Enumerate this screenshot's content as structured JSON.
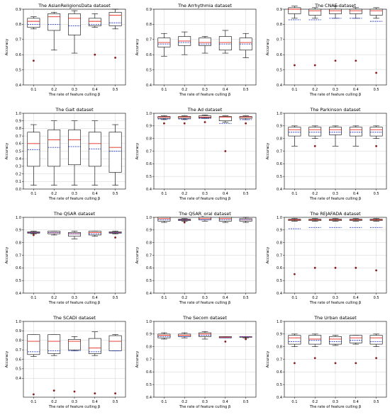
{
  "figure": {
    "layout": "4 rows x 3 columns of box plots"
  },
  "chart_data": [
    {
      "type": "box",
      "title": "The AsianReligionsData dataset",
      "xlabel": "The rate of feature culling β",
      "ylabel": "Accuracy",
      "categories": [
        "0.1",
        "0.2",
        "0.3",
        "0.4",
        "0.5"
      ],
      "ylim": [
        0.4,
        0.9
      ],
      "yticks": [
        "0.4",
        "0.5",
        "0.6",
        "0.7",
        "0.8",
        "0.9"
      ],
      "boxes": [
        {
          "whislo": 0.77,
          "q1": 0.78,
          "median": 0.82,
          "q3": 0.84,
          "whishi": 0.85,
          "mean": 0.8,
          "fliers": [
            0.56
          ]
        },
        {
          "whislo": 0.63,
          "q1": 0.76,
          "median": 0.85,
          "q3": 0.87,
          "whishi": 0.88,
          "mean": 0.8,
          "fliers": []
        },
        {
          "whislo": 0.61,
          "q1": 0.73,
          "median": 0.84,
          "q3": 0.87,
          "whishi": 0.89,
          "mean": 0.79,
          "fliers": []
        },
        {
          "whislo": 0.78,
          "q1": 0.79,
          "median": 0.82,
          "q3": 0.84,
          "whishi": 0.87,
          "mean": 0.8,
          "fliers": [
            0.6
          ]
        },
        {
          "whislo": 0.77,
          "q1": 0.79,
          "median": 0.86,
          "q3": 0.88,
          "whishi": 0.9,
          "mean": 0.81,
          "fliers": [
            0.58
          ]
        }
      ]
    },
    {
      "type": "box",
      "title": "The Arrhythmia dataset",
      "xlabel": "The rate of feature culling β",
      "ylabel": "Accuracy",
      "categories": [
        "0.1",
        "0.2",
        "0.3",
        "0.4",
        "0.5"
      ],
      "ylim": [
        0.4,
        0.9
      ],
      "yticks": [
        "0.4",
        "0.5",
        "0.6",
        "0.7",
        "0.8",
        "0.9"
      ],
      "boxes": [
        {
          "whislo": 0.59,
          "q1": 0.65,
          "median": 0.68,
          "q3": 0.71,
          "whishi": 0.74,
          "mean": 0.67,
          "fliers": []
        },
        {
          "whislo": 0.6,
          "q1": 0.66,
          "median": 0.69,
          "q3": 0.72,
          "whishi": 0.75,
          "mean": 0.68,
          "fliers": []
        },
        {
          "whislo": 0.61,
          "q1": 0.66,
          "median": 0.68,
          "q3": 0.71,
          "whishi": 0.72,
          "mean": 0.67,
          "fliers": []
        },
        {
          "whislo": 0.61,
          "q1": 0.63,
          "median": 0.68,
          "q3": 0.72,
          "whishi": 0.76,
          "mean": 0.67,
          "fliers": []
        },
        {
          "whislo": 0.58,
          "q1": 0.63,
          "median": 0.68,
          "q3": 0.71,
          "whishi": 0.74,
          "mean": 0.67,
          "fliers": []
        }
      ]
    },
    {
      "type": "box",
      "title": "The CNAE dataset",
      "xlabel": "The rate of feature culling β",
      "ylabel": "Accuracy",
      "categories": [
        "0.1",
        "0.2",
        "0.3",
        "0.4",
        "0.5"
      ],
      "ylim": [
        0.4,
        0.9
      ],
      "yticks": [
        "0.4",
        "0.5",
        "0.6",
        "0.7",
        "0.8",
        "0.9"
      ],
      "boxes": [
        {
          "whislo": 0.84,
          "q1": 0.87,
          "median": 0.9,
          "q3": 0.91,
          "whishi": 0.92,
          "mean": 0.83,
          "fliers": [
            0.53
          ]
        },
        {
          "whislo": 0.84,
          "q1": 0.86,
          "median": 0.89,
          "q3": 0.9,
          "whishi": 0.91,
          "mean": 0.83,
          "fliers": [
            0.53
          ]
        },
        {
          "whislo": 0.84,
          "q1": 0.87,
          "median": 0.89,
          "q3": 0.9,
          "whishi": 0.92,
          "mean": 0.84,
          "fliers": [
            0.56
          ]
        },
        {
          "whislo": 0.84,
          "q1": 0.87,
          "median": 0.89,
          "q3": 0.9,
          "whishi": 0.91,
          "mean": 0.84,
          "fliers": [
            0.56
          ]
        },
        {
          "whislo": 0.84,
          "q1": 0.86,
          "median": 0.89,
          "q3": 0.9,
          "whishi": 0.91,
          "mean": 0.82,
          "fliers": [
            0.48
          ]
        }
      ]
    },
    {
      "type": "box",
      "title": "The Gait dataset",
      "xlabel": "The rate of feature culling β",
      "ylabel": "Accuracy",
      "categories": [
        "0.1",
        "0.2",
        "0.3",
        "0.4",
        "0.5"
      ],
      "ylim": [
        0.0,
        1.0
      ],
      "yticks": [
        "0.0",
        "0.1",
        "0.2",
        "0.3",
        "0.4",
        "0.5",
        "0.6",
        "0.7",
        "0.8",
        "0.9",
        "1.0"
      ],
      "boxes": [
        {
          "whislo": 0.05,
          "q1": 0.3,
          "median": 0.6,
          "q3": 0.75,
          "whishi": 0.85,
          "mean": 0.52,
          "fliers": []
        },
        {
          "whislo": 0.05,
          "q1": 0.3,
          "median": 0.65,
          "q3": 0.78,
          "whishi": 0.9,
          "mean": 0.55,
          "fliers": []
        },
        {
          "whislo": 0.05,
          "q1": 0.32,
          "median": 0.65,
          "q3": 0.78,
          "whishi": 0.9,
          "mean": 0.56,
          "fliers": []
        },
        {
          "whislo": 0.05,
          "q1": 0.3,
          "median": 0.6,
          "q3": 0.75,
          "whishi": 0.9,
          "mean": 0.53,
          "fliers": []
        },
        {
          "whislo": 0.05,
          "q1": 0.22,
          "median": 0.55,
          "q3": 0.75,
          "whishi": 0.85,
          "mean": 0.5,
          "fliers": []
        }
      ]
    },
    {
      "type": "box",
      "title": "The Ad dataset",
      "xlabel": "The rate of feature culling β",
      "ylabel": "Accuracy",
      "categories": [
        "0.1",
        "0.2",
        "0.3",
        "0.4",
        "0.5"
      ],
      "ylim": [
        0.4,
        1.0
      ],
      "yticks": [
        "0.4",
        "0.5",
        "0.6",
        "0.7",
        "0.8",
        "0.9",
        "1.0"
      ],
      "boxes": [
        {
          "whislo": 0.95,
          "q1": 0.96,
          "median": 0.97,
          "q3": 0.975,
          "whishi": 0.98,
          "mean": 0.955,
          "fliers": [
            0.92
          ]
        },
        {
          "whislo": 0.95,
          "q1": 0.96,
          "median": 0.97,
          "q3": 0.975,
          "whishi": 0.98,
          "mean": 0.955,
          "fliers": [
            0.92
          ]
        },
        {
          "whislo": 0.96,
          "q1": 0.965,
          "median": 0.97,
          "q3": 0.98,
          "whishi": 0.985,
          "mean": 0.96,
          "fliers": [
            0.93
          ]
        },
        {
          "whislo": 0.93,
          "q1": 0.94,
          "median": 0.97,
          "q3": 0.975,
          "whishi": 0.98,
          "mean": 0.92,
          "fliers": [
            0.7
          ]
        },
        {
          "whislo": 0.95,
          "q1": 0.96,
          "median": 0.97,
          "q3": 0.975,
          "whishi": 0.98,
          "mean": 0.95,
          "fliers": [
            0.92
          ]
        }
      ]
    },
    {
      "type": "box",
      "title": "The Parkinson dataset",
      "xlabel": "The rate of feature culling β",
      "ylabel": "Accuracy",
      "categories": [
        "0.1",
        "0.2",
        "0.3",
        "0.4",
        "0.5"
      ],
      "ylim": [
        0.4,
        1.0
      ],
      "yticks": [
        "0.4",
        "0.5",
        "0.6",
        "0.7",
        "0.8",
        "0.9",
        "1.0"
      ],
      "boxes": [
        {
          "whislo": 0.74,
          "q1": 0.82,
          "median": 0.87,
          "q3": 0.89,
          "whishi": 0.9,
          "mean": 0.85,
          "fliers": []
        },
        {
          "whislo": 0.8,
          "q1": 0.82,
          "median": 0.87,
          "q3": 0.89,
          "whishi": 0.9,
          "mean": 0.85,
          "fliers": [
            0.74
          ]
        },
        {
          "whislo": 0.74,
          "q1": 0.83,
          "median": 0.87,
          "q3": 0.89,
          "whishi": 0.9,
          "mean": 0.85,
          "fliers": []
        },
        {
          "whislo": 0.74,
          "q1": 0.82,
          "median": 0.87,
          "q3": 0.89,
          "whishi": 0.9,
          "mean": 0.85,
          "fliers": []
        },
        {
          "whislo": 0.8,
          "q1": 0.82,
          "median": 0.87,
          "q3": 0.89,
          "whishi": 0.9,
          "mean": 0.85,
          "fliers": [
            0.74
          ]
        }
      ]
    },
    {
      "type": "box",
      "title": "The QSAR dataset",
      "xlabel": "The rate of feature culling β",
      "ylabel": "Accuracy",
      "categories": [
        "0.1",
        "0.2",
        "0.3",
        "0.4",
        "0.5"
      ],
      "ylim": [
        0.4,
        1.0
      ],
      "yticks": [
        "0.4",
        "0.5",
        "0.6",
        "0.7",
        "0.8",
        "0.9",
        "1.0"
      ],
      "boxes": [
        {
          "whislo": 0.87,
          "q1": 0.875,
          "median": 0.88,
          "q3": 0.885,
          "whishi": 0.89,
          "mean": 0.88,
          "fliers": [
            0.86
          ]
        },
        {
          "whislo": 0.86,
          "q1": 0.87,
          "median": 0.88,
          "q3": 0.89,
          "whishi": 0.89,
          "mean": 0.88,
          "fliers": []
        },
        {
          "whislo": 0.83,
          "q1": 0.85,
          "median": 0.87,
          "q3": 0.88,
          "whishi": 0.89,
          "mean": 0.87,
          "fliers": []
        },
        {
          "whislo": 0.85,
          "q1": 0.86,
          "median": 0.88,
          "q3": 0.89,
          "whishi": 0.89,
          "mean": 0.87,
          "fliers": []
        },
        {
          "whislo": 0.87,
          "q1": 0.875,
          "median": 0.88,
          "q3": 0.885,
          "whishi": 0.89,
          "mean": 0.88,
          "fliers": [
            0.84
          ]
        }
      ]
    },
    {
      "type": "box",
      "title": "The QSAR_oral dataset",
      "xlabel": "The rate of feature culling β",
      "ylabel": "Accuracy",
      "categories": [
        "0.1",
        "0.2",
        "0.3",
        "0.4",
        "0.5"
      ],
      "ylim": [
        0.4,
        1.0
      ],
      "yticks": [
        "0.4",
        "0.5",
        "0.6",
        "0.7",
        "0.8",
        "0.9",
        "1.0"
      ],
      "boxes": [
        {
          "whislo": 0.96,
          "q1": 0.97,
          "median": 0.99,
          "q3": 1.0,
          "whishi": 1.0,
          "mean": 0.98,
          "fliers": []
        },
        {
          "whislo": 0.97,
          "q1": 0.975,
          "median": 0.98,
          "q3": 0.985,
          "whishi": 0.99,
          "mean": 0.98,
          "fliers": [
            0.96
          ]
        },
        {
          "whislo": 0.97,
          "q1": 0.98,
          "median": 0.99,
          "q3": 1.0,
          "whishi": 1.0,
          "mean": 0.98,
          "fliers": []
        },
        {
          "whislo": 0.96,
          "q1": 0.97,
          "median": 0.99,
          "q3": 1.0,
          "whishi": 1.0,
          "mean": 0.98,
          "fliers": []
        },
        {
          "whislo": 0.96,
          "q1": 0.97,
          "median": 0.98,
          "q3": 0.99,
          "whishi": 1.0,
          "mean": 0.98,
          "fliers": []
        }
      ]
    },
    {
      "type": "box",
      "title": "The REJAFADA dataset",
      "xlabel": "The rate of feature culling β",
      "ylabel": "Accuracy",
      "categories": [
        "0.1",
        "0.2",
        "0.3",
        "0.4",
        "0.5"
      ],
      "ylim": [
        0.4,
        1.0
      ],
      "yticks": [
        "0.4",
        "0.5",
        "0.6",
        "0.7",
        "0.8",
        "0.9",
        "1.0"
      ],
      "boxes": [
        {
          "whislo": 0.97,
          "q1": 0.975,
          "median": 0.98,
          "q3": 0.985,
          "whishi": 0.99,
          "mean": 0.91,
          "fliers": [
            0.55
          ]
        },
        {
          "whislo": 0.97,
          "q1": 0.975,
          "median": 0.98,
          "q3": 0.985,
          "whishi": 0.99,
          "mean": 0.92,
          "fliers": [
            0.6
          ]
        },
        {
          "whislo": 0.97,
          "q1": 0.975,
          "median": 0.98,
          "q3": 0.985,
          "whishi": 0.99,
          "mean": 0.92,
          "fliers": [
            0.6
          ]
        },
        {
          "whislo": 0.97,
          "q1": 0.975,
          "median": 0.98,
          "q3": 0.985,
          "whishi": 0.99,
          "mean": 0.92,
          "fliers": [
            0.6
          ]
        },
        {
          "whislo": 0.97,
          "q1": 0.975,
          "median": 0.98,
          "q3": 0.985,
          "whishi": 0.99,
          "mean": 0.92,
          "fliers": [
            0.58
          ]
        }
      ]
    },
    {
      "type": "box",
      "title": "The SCADI dataset",
      "xlabel": "The rate of feature culling β",
      "ylabel": "Accuracy",
      "categories": [
        "0.1",
        "0.2",
        "0.3",
        "0.4",
        "0.5"
      ],
      "ylim": [
        0.2,
        1.0
      ],
      "yticks": [
        "0.4",
        "0.5",
        "0.6",
        "0.7",
        "0.8",
        "0.9",
        "1.0"
      ],
      "boxes": [
        {
          "whislo": 0.63,
          "q1": 0.65,
          "median": 0.79,
          "q3": 0.86,
          "whishi": 0.86,
          "mean": 0.68,
          "fliers": [
            0.23
          ]
        },
        {
          "whislo": 0.64,
          "q1": 0.66,
          "median": 0.79,
          "q3": 0.86,
          "whishi": 0.86,
          "mean": 0.69,
          "fliers": [
            0.27
          ]
        },
        {
          "whislo": 0.69,
          "q1": 0.7,
          "median": 0.79,
          "q3": 0.81,
          "whishi": 0.84,
          "mean": 0.69,
          "fliers": [
            0.26
          ]
        },
        {
          "whislo": 0.64,
          "q1": 0.66,
          "median": 0.72,
          "q3": 0.82,
          "whishi": 0.89,
          "mean": 0.68,
          "fliers": [
            0.24
          ]
        },
        {
          "whislo": 0.69,
          "q1": 0.69,
          "median": 0.79,
          "q3": 0.85,
          "whishi": 0.86,
          "mean": 0.69,
          "fliers": [
            0.24
          ]
        }
      ]
    },
    {
      "type": "box",
      "title": "The Secom dataset",
      "xlabel": "The rate of feature culling β",
      "ylabel": "Accuracy",
      "categories": [
        "0.1",
        "0.2",
        "0.3",
        "0.4",
        "0.5"
      ],
      "ylim": [
        0.4,
        1.0
      ],
      "yticks": [
        "0.4",
        "0.5",
        "0.6",
        "0.7",
        "0.8",
        "0.9",
        "1.0"
      ],
      "boxes": [
        {
          "whislo": 0.86,
          "q1": 0.87,
          "median": 0.89,
          "q3": 0.9,
          "whishi": 0.91,
          "mean": 0.88,
          "fliers": []
        },
        {
          "whislo": 0.87,
          "q1": 0.88,
          "median": 0.89,
          "q3": 0.9,
          "whishi": 0.91,
          "mean": 0.88,
          "fliers": []
        },
        {
          "whislo": 0.86,
          "q1": 0.88,
          "median": 0.9,
          "q3": 0.91,
          "whishi": 0.92,
          "mean": 0.89,
          "fliers": []
        },
        {
          "whislo": 0.87,
          "q1": 0.87,
          "median": 0.875,
          "q3": 0.88,
          "whishi": 0.88,
          "mean": 0.87,
          "fliers": [
            0.84
          ]
        },
        {
          "whislo": 0.87,
          "q1": 0.875,
          "median": 0.88,
          "q3": 0.88,
          "whishi": 0.88,
          "mean": 0.88,
          "fliers": [
            0.86
          ]
        }
      ]
    },
    {
      "type": "box",
      "title": "The Urban dataset",
      "xlabel": "The rate of feature culling β",
      "ylabel": "Accuracy",
      "categories": [
        "0.1",
        "0.2",
        "0.3",
        "0.4",
        "0.5"
      ],
      "ylim": [
        0.4,
        1.0
      ],
      "yticks": [
        "0.4",
        "0.5",
        "0.6",
        "0.7",
        "0.8",
        "0.9",
        "1.0"
      ],
      "boxes": [
        {
          "whislo": 0.8,
          "q1": 0.82,
          "median": 0.87,
          "q3": 0.89,
          "whishi": 0.9,
          "mean": 0.84,
          "fliers": [
            0.67
          ]
        },
        {
          "whislo": 0.8,
          "q1": 0.82,
          "median": 0.86,
          "q3": 0.89,
          "whishi": 0.9,
          "mean": 0.85,
          "fliers": [
            0.71
          ]
        },
        {
          "whislo": 0.81,
          "q1": 0.82,
          "median": 0.86,
          "q3": 0.88,
          "whishi": 0.89,
          "mean": 0.84,
          "fliers": [
            0.67
          ]
        },
        {
          "whislo": 0.82,
          "q1": 0.83,
          "median": 0.87,
          "q3": 0.89,
          "whishi": 0.89,
          "mean": 0.85,
          "fliers": [
            0.67
          ]
        },
        {
          "whislo": 0.8,
          "q1": 0.82,
          "median": 0.87,
          "q3": 0.89,
          "whishi": 0.9,
          "mean": 0.84,
          "fliers": [
            0.71
          ]
        }
      ]
    }
  ],
  "style": {
    "box_color": "#000000",
    "median_color": "#e8281e",
    "mean_color": "#2a3fc8",
    "grid_color": "#d0d0d0",
    "flier_color": "#8b1a1a"
  }
}
